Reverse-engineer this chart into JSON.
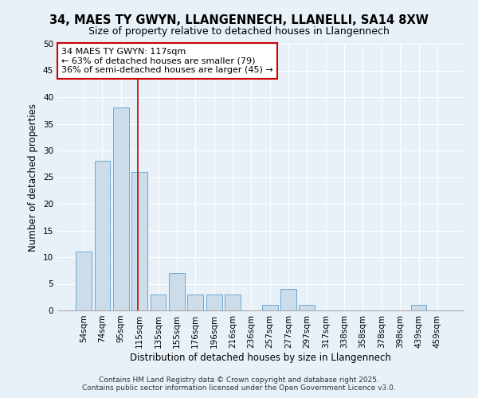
{
  "title": "34, MAES TY GWYN, LLANGENNECH, LLANELLI, SA14 8XW",
  "subtitle": "Size of property relative to detached houses in Llangennech",
  "xlabel": "Distribution of detached houses by size in Llangennech",
  "ylabel": "Number of detached properties",
  "categories": [
    "54sqm",
    "74sqm",
    "95sqm",
    "115sqm",
    "135sqm",
    "155sqm",
    "176sqm",
    "196sqm",
    "216sqm",
    "236sqm",
    "257sqm",
    "277sqm",
    "297sqm",
    "317sqm",
    "338sqm",
    "358sqm",
    "378sqm",
    "398sqm",
    "439sqm",
    "459sqm"
  ],
  "values": [
    11,
    28,
    38,
    26,
    3,
    7,
    3,
    3,
    3,
    0,
    1,
    4,
    1,
    0,
    0,
    0,
    0,
    0,
    1,
    0
  ],
  "bar_color": "#ccdce8",
  "bar_edge_color": "#6aaad4",
  "background_color": "#e8f0f8",
  "grid_color": "#ffffff",
  "annotation_line1": "34 MAES TY GWYN: 117sqm",
  "annotation_line2": "← 63% of detached houses are smaller (79)",
  "annotation_line3": "36% of semi-detached houses are larger (45) →",
  "annotation_box_color": "#ffffff",
  "annotation_box_edge": "#cc0000",
  "vline_x_index": 3,
  "ylim": [
    0,
    50
  ],
  "yticks": [
    0,
    5,
    10,
    15,
    20,
    25,
    30,
    35,
    40,
    45,
    50
  ],
  "footer_line1": "Contains HM Land Registry data © Crown copyright and database right 2025.",
  "footer_line2": "Contains public sector information licensed under the Open Government Licence v3.0.",
  "title_fontsize": 10.5,
  "subtitle_fontsize": 9,
  "axis_label_fontsize": 8.5,
  "tick_fontsize": 7.5,
  "annotation_fontsize": 8,
  "footer_fontsize": 6.5
}
